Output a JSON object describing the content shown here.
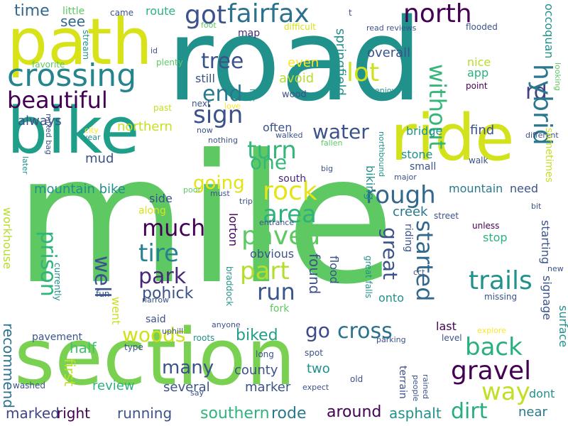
{
  "palette": [
    "#440154",
    "#3b528b",
    "#21918c",
    "#5ec962",
    "#fde725"
  ],
  "words": [
    {
      "text": "mile",
      "color": "#5ec962"
    },
    {
      "text": "road",
      "color": "#21918c"
    },
    {
      "text": "section",
      "color": "#7ad151"
    },
    {
      "text": "bike",
      "color": "#1f9e89"
    },
    {
      "text": "path",
      "color": "#d8e219"
    },
    {
      "text": "ride",
      "color": "#d2e21b"
    },
    {
      "text": "fairfax",
      "color": "#2c728e"
    },
    {
      "text": "got",
      "color": "#3b528b"
    },
    {
      "text": "north",
      "color": "#440154"
    },
    {
      "text": "lot",
      "color": "#cde11d"
    },
    {
      "text": "rd",
      "color": "#433e85"
    },
    {
      "text": "crossing",
      "color": "#25848e"
    },
    {
      "text": "beautiful",
      "color": "#440154"
    },
    {
      "text": "tree",
      "color": "#3b528b"
    },
    {
      "text": "end",
      "color": "#2a788e"
    },
    {
      "text": "sign",
      "color": "#3b528b"
    },
    {
      "text": "turn",
      "color": "#35b779"
    },
    {
      "text": "one",
      "color": "#35b779"
    },
    {
      "text": "rock",
      "color": "#e5e419"
    },
    {
      "text": "rough",
      "color": "#31688e"
    },
    {
      "text": "area",
      "color": "#2db27d"
    },
    {
      "text": "paved",
      "color": "#5ec962"
    },
    {
      "text": "part",
      "color": "#b5de2b"
    },
    {
      "text": "much",
      "color": "#440154"
    },
    {
      "text": "tire",
      "color": "#26828e"
    },
    {
      "text": "park",
      "color": "#482878"
    },
    {
      "text": "run",
      "color": "#39568c"
    },
    {
      "text": "trails",
      "color": "#21918c"
    },
    {
      "text": "gravel",
      "color": "#440154"
    },
    {
      "text": "way",
      "color": "#c2df23"
    },
    {
      "text": "dirt",
      "color": "#26ad81"
    },
    {
      "text": "back",
      "color": "#2ab07f"
    },
    {
      "text": "go",
      "color": "#3e4989"
    },
    {
      "text": "cross",
      "color": "#2c728e"
    },
    {
      "text": "water",
      "color": "#3b528b"
    },
    {
      "text": "hybrid",
      "color": "#2a788e"
    },
    {
      "text": "without",
      "color": "#35b779"
    },
    {
      "text": "started",
      "color": "#31688e"
    },
    {
      "text": "great",
      "color": "#3b528b"
    },
    {
      "text": "prison",
      "color": "#2fb47c"
    },
    {
      "text": "well",
      "color": "#3b528b"
    },
    {
      "text": "woods",
      "color": "#d0e11c"
    },
    {
      "text": "many",
      "color": "#3b528b"
    },
    {
      "text": "pohick",
      "color": "#3b528b"
    },
    {
      "text": "biked",
      "color": "#1f9e89"
    },
    {
      "text": "county",
      "color": "#3b528b"
    },
    {
      "text": "two",
      "color": "#21918c"
    },
    {
      "text": "around",
      "color": "#440154"
    },
    {
      "text": "southern",
      "color": "#2fb47c"
    },
    {
      "text": "rode",
      "color": "#2a788e"
    },
    {
      "text": "running",
      "color": "#3b528b"
    },
    {
      "text": "marked",
      "color": "#414487"
    },
    {
      "text": "right",
      "color": "#440154"
    },
    {
      "text": "asphalt",
      "color": "#21918c"
    },
    {
      "text": "near",
      "color": "#2a788e"
    },
    {
      "text": "dont",
      "color": "#21918c"
    },
    {
      "text": "several",
      "color": "#3b528b"
    },
    {
      "text": "marker",
      "color": "#3b528b"
    },
    {
      "text": "review",
      "color": "#2db27d"
    },
    {
      "text": "half",
      "color": "#44bf70"
    },
    {
      "text": "recommend",
      "color": "#2c728e"
    },
    {
      "text": "first",
      "color": "#bddf26"
    },
    {
      "text": "workhouse",
      "color": "#b5de2b"
    },
    {
      "text": "mountain bike",
      "color": "#21918c"
    },
    {
      "text": "going",
      "color": "#e2e418"
    },
    {
      "text": "mud",
      "color": "#3b528b"
    },
    {
      "text": "always",
      "color": "#3b528b"
    },
    {
      "text": "northern",
      "color": "#c8e020"
    },
    {
      "text": "time",
      "color": "#31688e"
    },
    {
      "text": "see",
      "color": "#31688e"
    },
    {
      "text": "little",
      "color": "#5ec962"
    },
    {
      "text": "came",
      "color": "#3b528b"
    },
    {
      "text": "route",
      "color": "#2db27d"
    },
    {
      "text": "map",
      "color": "#482878"
    },
    {
      "text": "difficult",
      "color": "#d8e219"
    },
    {
      "text": "foot",
      "color": "#5ec962"
    },
    {
      "text": "read reviews",
      "color": "#3b528b"
    },
    {
      "text": "flooded",
      "color": "#3b528b"
    },
    {
      "text": "overall",
      "color": "#3b528b"
    },
    {
      "text": "springfield",
      "color": "#21918c"
    },
    {
      "text": "even",
      "color": "#fde725"
    },
    {
      "text": "avoid",
      "color": "#b5de2b"
    },
    {
      "text": "nice",
      "color": "#b5de2b"
    },
    {
      "text": "app",
      "color": "#2db27d"
    },
    {
      "text": "occoquan",
      "color": "#21918c"
    },
    {
      "text": "point",
      "color": "#440154"
    },
    {
      "text": "still",
      "color": "#3b528b"
    },
    {
      "text": "wood",
      "color": "#3b528b"
    },
    {
      "text": "enjoy",
      "color": "#21918c"
    },
    {
      "text": "looking",
      "color": "#5ec962"
    },
    {
      "text": "often",
      "color": "#3b528b"
    },
    {
      "text": "walked",
      "color": "#3b528b"
    },
    {
      "text": "bridge",
      "color": "#21918c"
    },
    {
      "text": "find",
      "color": "#3b528b"
    },
    {
      "text": "different",
      "color": "#3b528b"
    },
    {
      "text": "stone",
      "color": "#21918c"
    },
    {
      "text": "small",
      "color": "#3b528b"
    },
    {
      "text": "walk",
      "color": "#3b528b"
    },
    {
      "text": "sometimes",
      "color": "#c8e020"
    },
    {
      "text": "south",
      "color": "#482878"
    },
    {
      "text": "biking",
      "color": "#21918c"
    },
    {
      "text": "mountain",
      "color": "#2a788e"
    },
    {
      "text": "need",
      "color": "#3b528b"
    },
    {
      "text": "creek",
      "color": "#2a788e"
    },
    {
      "text": "riding",
      "color": "#3b528b"
    },
    {
      "text": "street",
      "color": "#3b528b"
    },
    {
      "text": "unless",
      "color": "#440154"
    },
    {
      "text": "stop",
      "color": "#2db27d"
    },
    {
      "text": "starting",
      "color": "#3b528b"
    },
    {
      "text": "found",
      "color": "#3b528b"
    },
    {
      "text": "flood",
      "color": "#3b528b"
    },
    {
      "text": "obvious",
      "color": "#3b528b"
    },
    {
      "text": "lorton",
      "color": "#440154"
    },
    {
      "text": "entrance",
      "color": "#3b528b"
    },
    {
      "text": "side",
      "color": "#3b528b"
    },
    {
      "text": "along",
      "color": "#d8e219"
    },
    {
      "text": "poor",
      "color": "#5ec962"
    },
    {
      "text": "trip",
      "color": "#3b528b"
    },
    {
      "text": "must",
      "color": "#3b528b"
    },
    {
      "text": "bit",
      "color": "#3b528b"
    },
    {
      "text": "great falls",
      "color": "#21918c"
    },
    {
      "text": "cct",
      "color": "#3b528b"
    },
    {
      "text": "onto",
      "color": "#21918c"
    },
    {
      "text": "fork",
      "color": "#5ec962"
    },
    {
      "text": "missing",
      "color": "#3b528b"
    },
    {
      "text": "signage",
      "color": "#3b528b"
    },
    {
      "text": "surface",
      "color": "#21918c"
    },
    {
      "text": "new",
      "color": "#3b528b"
    },
    {
      "text": "explore",
      "color": "#fde725"
    },
    {
      "text": "parking",
      "color": "#3b528b"
    },
    {
      "text": "level",
      "color": "#3b528b"
    },
    {
      "text": "last",
      "color": "#440154"
    },
    {
      "text": "went",
      "color": "#c8e020"
    },
    {
      "text": "said",
      "color": "#3b528b"
    },
    {
      "text": "narrow",
      "color": "#3b528b"
    },
    {
      "text": "fun",
      "color": "#3b528b"
    },
    {
      "text": "braddock",
      "color": "#21918c"
    },
    {
      "text": "currently",
      "color": "#21918c"
    },
    {
      "text": "uphill",
      "color": "#3b528b"
    },
    {
      "text": "anyone",
      "color": "#3b528b"
    },
    {
      "text": "roots",
      "color": "#21918c"
    },
    {
      "text": "type",
      "color": "#3b528b"
    },
    {
      "text": "pavement",
      "color": "#3b528b"
    },
    {
      "text": "long",
      "color": "#3b528b"
    },
    {
      "text": "spot",
      "color": "#3b528b"
    },
    {
      "text": "old",
      "color": "#3b528b"
    },
    {
      "text": "expect",
      "color": "#3b528b"
    },
    {
      "text": "say",
      "color": "#3b528b"
    },
    {
      "text": "washed",
      "color": "#3b528b"
    },
    {
      "text": "terrain",
      "color": "#3b528b"
    },
    {
      "text": "people",
      "color": "#3b528b"
    },
    {
      "text": "rained",
      "color": "#3b528b"
    },
    {
      "text": "major",
      "color": "#3b528b"
    },
    {
      "text": "big",
      "color": "#3b528b"
    },
    {
      "text": "northbound",
      "color": "#21918c"
    },
    {
      "text": "fallen",
      "color": "#5ec962"
    },
    {
      "text": "nothing",
      "color": "#3b528b"
    },
    {
      "text": "now",
      "color": "#3b528b"
    },
    {
      "text": "city",
      "color": "#fde725"
    },
    {
      "text": "year",
      "color": "#21918c"
    },
    {
      "text": "past",
      "color": "#c8e020"
    },
    {
      "text": "next",
      "color": "#3b528b"
    },
    {
      "text": "love",
      "color": "#fde725"
    },
    {
      "text": "left",
      "color": "#21918c"
    },
    {
      "text": "plenty",
      "color": "#5ec962"
    },
    {
      "text": "id",
      "color": "#3b528b"
    },
    {
      "text": "favorite",
      "color": "#5ec962"
    },
    {
      "text": "stream",
      "color": "#21918c"
    },
    {
      "text": "mixed bag",
      "color": "#3b528b"
    },
    {
      "text": "later",
      "color": "#21918c"
    },
    {
      "text": "t",
      "color": "#3b528b"
    }
  ]
}
